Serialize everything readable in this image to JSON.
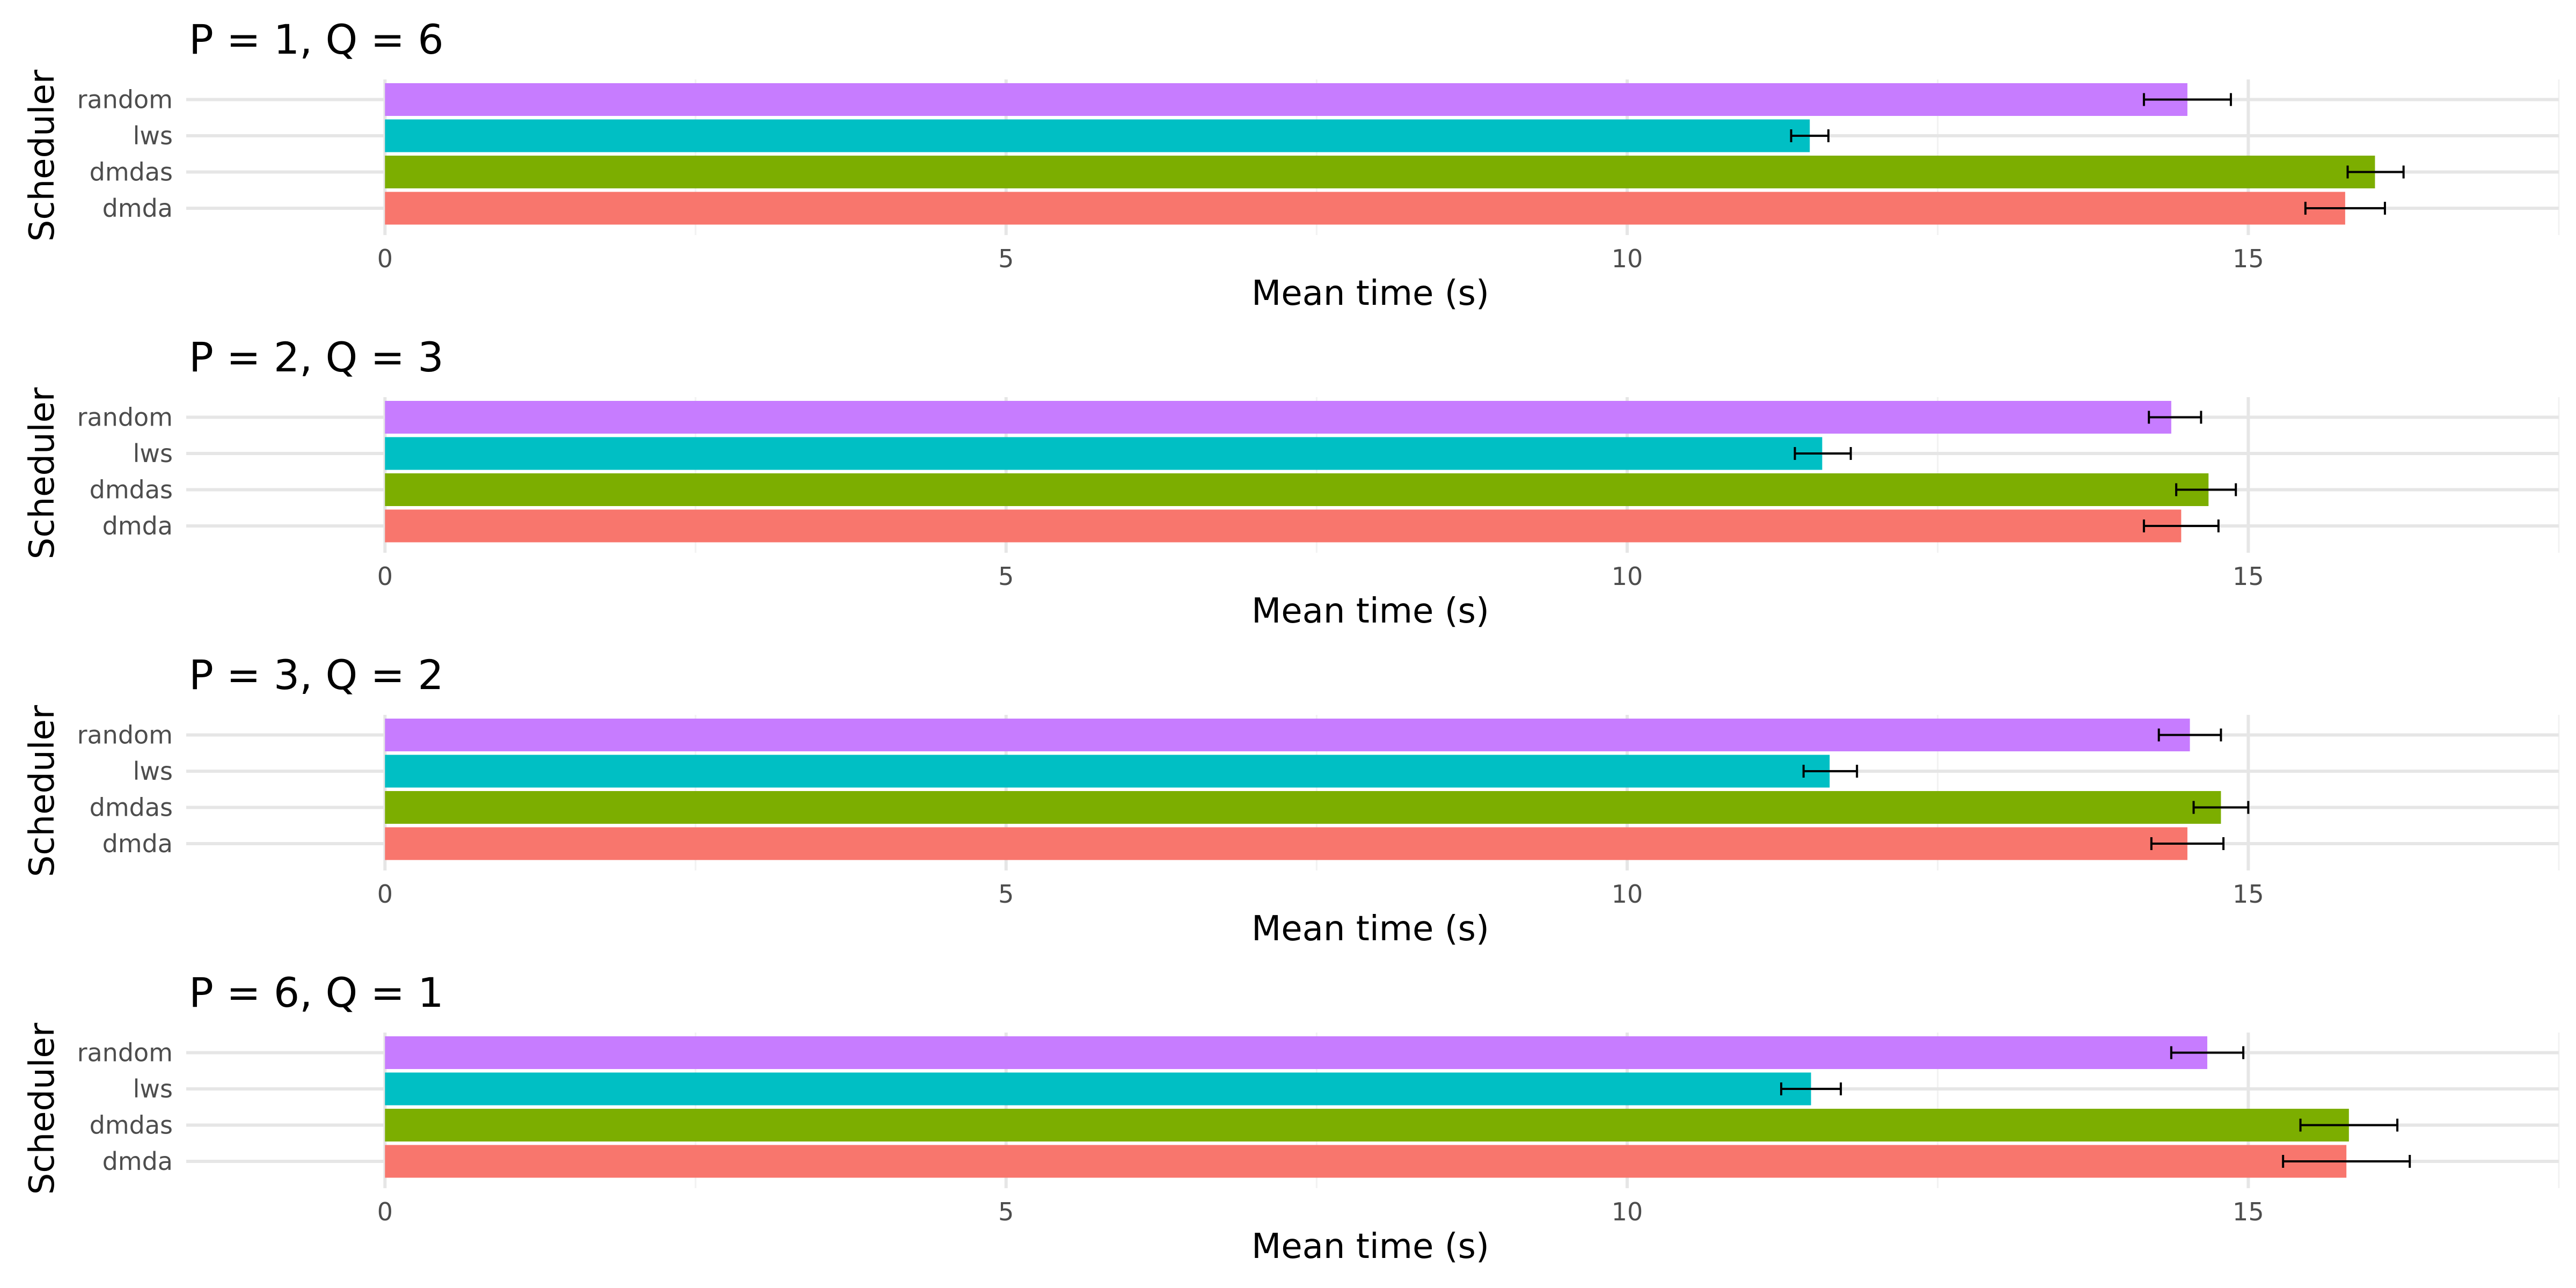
{
  "chart_data": [
    {
      "type": "bar",
      "orientation": "horizontal",
      "title": "P = 1, Q = 6",
      "xlabel": "Mean time (s)",
      "ylabel": "Scheduler",
      "xlim": [
        -1.6,
        17.5
      ],
      "xticks": [
        0,
        5,
        10,
        15
      ],
      "grid": true,
      "legend": "none",
      "categories": [
        "dmda",
        "dmdas",
        "lws",
        "random"
      ],
      "values": [
        15.78,
        16.02,
        11.47,
        14.51
      ],
      "errors": [
        [
          15.46,
          16.1
        ],
        [
          15.8,
          16.25
        ],
        [
          11.32,
          11.62
        ],
        [
          14.16,
          14.86
        ]
      ],
      "colors": [
        "#F8766D",
        "#7CAE00",
        "#00BFC4",
        "#C77CFF"
      ]
    },
    {
      "type": "bar",
      "orientation": "horizontal",
      "title": "P = 2, Q = 3",
      "xlabel": "Mean time (s)",
      "ylabel": "Scheduler",
      "xlim": [
        -1.6,
        17.5
      ],
      "xticks": [
        0,
        5,
        10,
        15
      ],
      "grid": true,
      "legend": "none",
      "categories": [
        "dmda",
        "dmdas",
        "lws",
        "random"
      ],
      "values": [
        14.46,
        14.68,
        11.57,
        14.38
      ],
      "errors": [
        [
          14.16,
          14.76
        ],
        [
          14.42,
          14.9
        ],
        [
          11.35,
          11.8
        ],
        [
          14.2,
          14.62
        ]
      ],
      "colors": [
        "#F8766D",
        "#7CAE00",
        "#00BFC4",
        "#C77CFF"
      ]
    },
    {
      "type": "bar",
      "orientation": "horizontal",
      "title": "P = 3, Q = 2",
      "xlabel": "Mean time (s)",
      "ylabel": "Scheduler",
      "xlim": [
        -1.6,
        17.5
      ],
      "xticks": [
        0,
        5,
        10,
        15
      ],
      "grid": true,
      "legend": "none",
      "categories": [
        "dmda",
        "dmdas",
        "lws",
        "random"
      ],
      "values": [
        14.51,
        14.78,
        11.63,
        14.53
      ],
      "errors": [
        [
          14.22,
          14.8
        ],
        [
          14.56,
          15.0
        ],
        [
          11.42,
          11.85
        ],
        [
          14.28,
          14.78
        ]
      ],
      "colors": [
        "#F8766D",
        "#7CAE00",
        "#00BFC4",
        "#C77CFF"
      ]
    },
    {
      "type": "bar",
      "orientation": "horizontal",
      "title": "P = 6, Q = 1",
      "xlabel": "Mean time (s)",
      "ylabel": "Scheduler",
      "xlim": [
        -1.6,
        17.5
      ],
      "xticks": [
        0,
        5,
        10,
        15
      ],
      "grid": true,
      "legend": "none",
      "categories": [
        "dmda",
        "dmdas",
        "lws",
        "random"
      ],
      "values": [
        15.79,
        15.81,
        11.48,
        14.67
      ],
      "errors": [
        [
          15.28,
          16.3
        ],
        [
          15.42,
          16.2
        ],
        [
          11.24,
          11.72
        ],
        [
          14.38,
          14.96
        ]
      ],
      "colors": [
        "#F8766D",
        "#7CAE00",
        "#00BFC4",
        "#C77CFF"
      ]
    }
  ]
}
